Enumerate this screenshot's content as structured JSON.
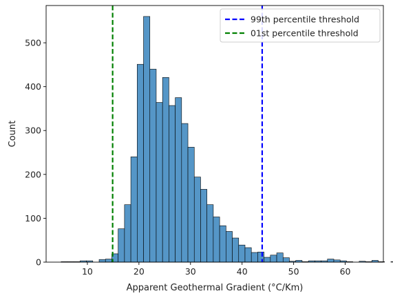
{
  "chart_data": {
    "type": "bar",
    "subtype": "histogram",
    "title": "",
    "xlabel": "Apparent Geothermal Gradient (°C/Km)",
    "ylabel": "Count",
    "xlim": [
      2.0,
      67.4
    ],
    "ylim": [
      0,
      585
    ],
    "xticks": [
      10,
      20,
      30,
      40,
      50,
      60
    ],
    "yticks": [
      0,
      100,
      200,
      300,
      400,
      500
    ],
    "bin_start": 4.9,
    "bin_width": 1.23,
    "counts": [
      1,
      1,
      1,
      3,
      3,
      0,
      6,
      7,
      19,
      76,
      131,
      240,
      451,
      560,
      440,
      364,
      421,
      357,
      375,
      316,
      262,
      194,
      166,
      131,
      103,
      83,
      70,
      55,
      39,
      33,
      22,
      23,
      11,
      16,
      21,
      10,
      2,
      4,
      1,
      3,
      3,
      3,
      7,
      5,
      3,
      1,
      0,
      2,
      1,
      4,
      1,
      0,
      1,
      2
    ],
    "bar_color": "#5596c7",
    "grid": false,
    "legend_position": "top-right",
    "series": [
      {
        "name": "Count",
        "values_ref": "counts",
        "color": "#5596c7"
      }
    ],
    "reference_lines": [
      {
        "name": "99th percentile threshold",
        "x": 43.9,
        "color": "#0000ff",
        "style": "dashed"
      },
      {
        "name": "01st percentile threshold",
        "x": 14.9,
        "color": "#008000",
        "style": "dashed"
      }
    ]
  }
}
